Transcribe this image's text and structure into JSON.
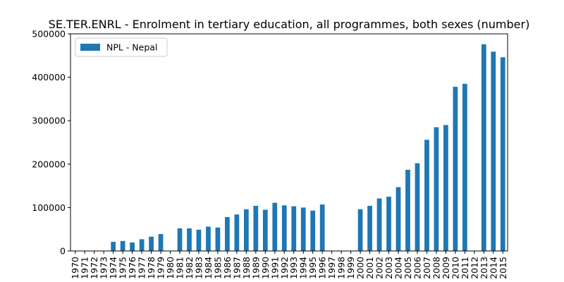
{
  "chart_data": {
    "type": "bar",
    "title": "SE.TER.ENRL - Enrolment in tertiary education, all programmes, both sexes (number)",
    "xlabel": "",
    "ylabel": "",
    "ylim": [
      0,
      500000
    ],
    "yticks": [
      0,
      100000,
      200000,
      300000,
      400000,
      500000
    ],
    "legend_position": "top-left",
    "grid": false,
    "bar_color": "#1f77b4",
    "categories": [
      "1970",
      "1971",
      "1972",
      "1973",
      "1974",
      "1975",
      "1976",
      "1977",
      "1978",
      "1979",
      "1980",
      "1981",
      "1982",
      "1983",
      "1984",
      "1985",
      "1986",
      "1987",
      "1988",
      "1989",
      "1990",
      "1991",
      "1992",
      "1993",
      "1994",
      "1995",
      "1996",
      "1997",
      "1998",
      "1999",
      "2000",
      "2001",
      "2002",
      "2003",
      "2004",
      "2005",
      "2006",
      "2007",
      "2008",
      "2009",
      "2010",
      "2011",
      "2012",
      "2013",
      "2014",
      "2015"
    ],
    "series": [
      {
        "name": "NPL - Nepal",
        "values": [
          null,
          null,
          null,
          null,
          21000,
          23000,
          19500,
          27000,
          33000,
          39000,
          null,
          52000,
          52000,
          49000,
          56000,
          54000,
          78000,
          84000,
          96000,
          104000,
          95000,
          111000,
          105000,
          103000,
          100000,
          93000,
          107000,
          null,
          null,
          null,
          96000,
          104000,
          121000,
          125000,
          147000,
          187000,
          202000,
          256000,
          285000,
          290000,
          378000,
          385000,
          null,
          476000,
          459000,
          446000
        ]
      }
    ]
  }
}
